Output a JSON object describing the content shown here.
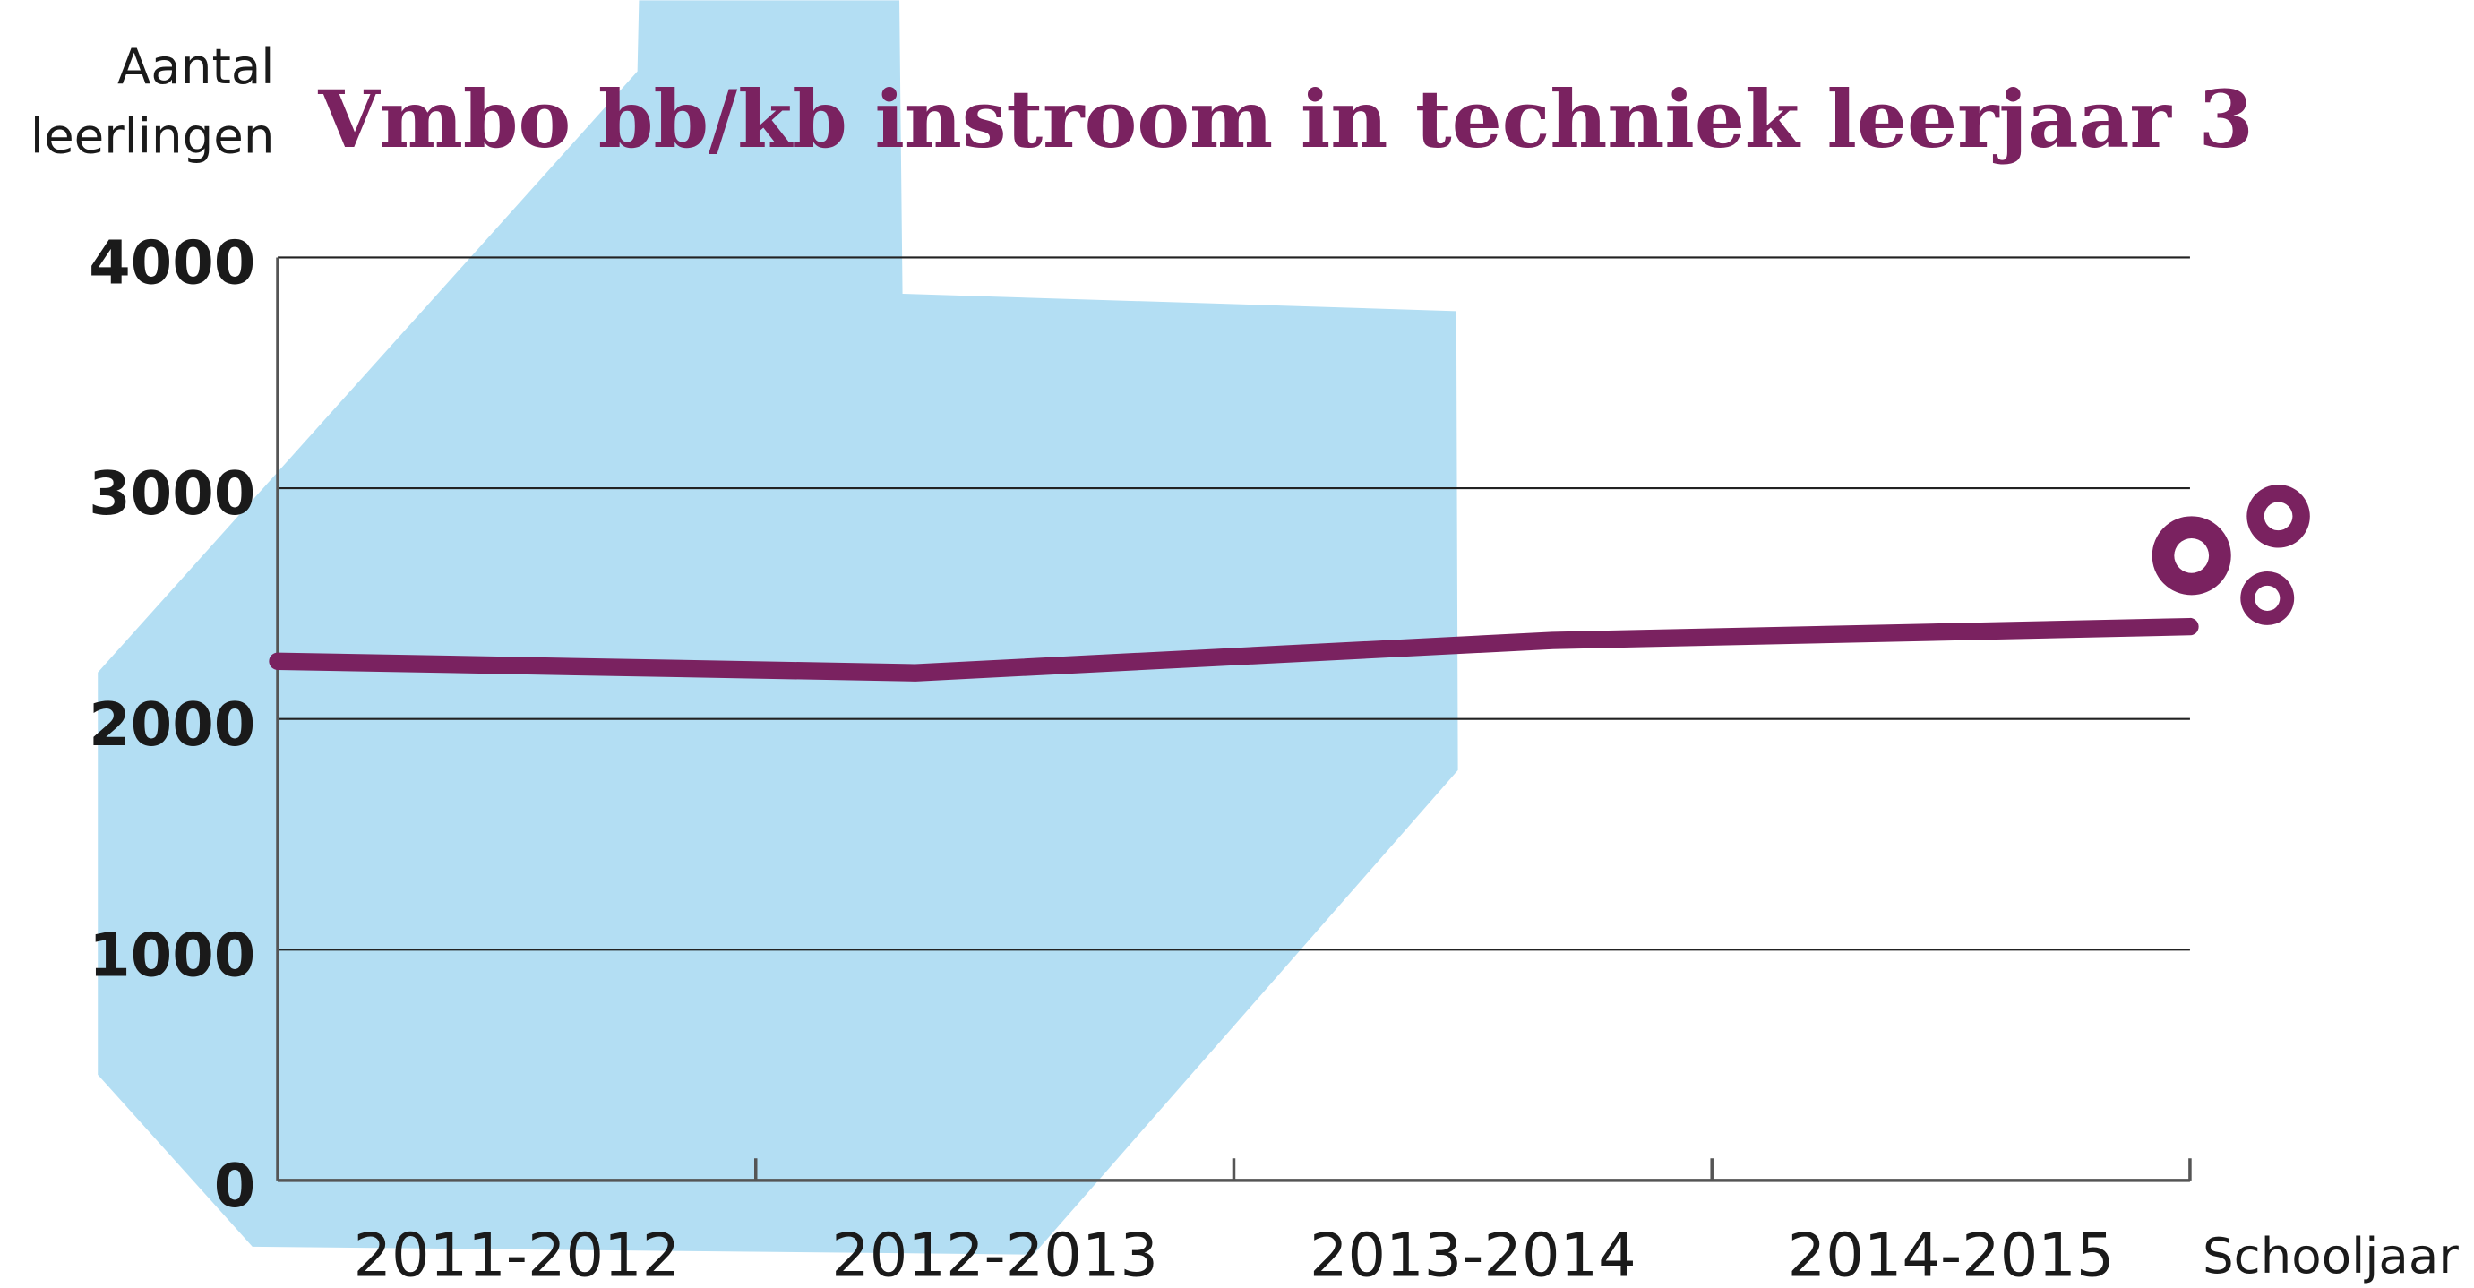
{
  "chart_data": {
    "type": "line",
    "title": "Vmbo bb/kb instroom in techniek leerjaar 3",
    "ylabel": [
      "Aantal",
      "leerlingen"
    ],
    "xlabel": "Schooljaar",
    "categories": [
      "2011-2012",
      "2012-2013",
      "2013-2014",
      "2014-2015"
    ],
    "series": [
      {
        "color": "#7a2260",
        "values": [
          2250,
          2200,
          2340,
          2400
        ]
      }
    ],
    "ylim": [
      0,
      4000
    ],
    "yticks": [
      0,
      1000,
      2000,
      3000,
      4000
    ],
    "grid": true
  }
}
